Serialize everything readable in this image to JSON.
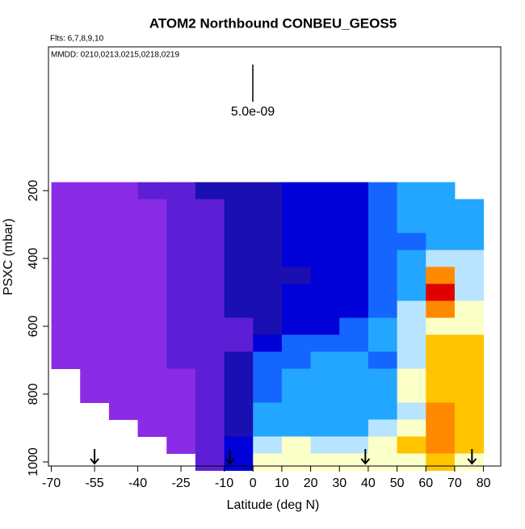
{
  "chart_data": {
    "type": "heatmap",
    "title": "ATOM2 Northbound CONBEU_GEOS5",
    "subtitle": "Flts: 6,7,8,9,10",
    "annotation": "MMDD: 0210,0213,0215,0218,0219",
    "scale_label": "5.0e-09",
    "xlabel": "Latitude (deg N)",
    "ylabel": "PSXC (mbar)",
    "xlim": [
      -71,
      86
    ],
    "ylim": [
      1012,
      -224
    ],
    "xticks": [
      -70,
      -55,
      -40,
      -25,
      -10,
      0,
      10,
      20,
      30,
      40,
      50,
      60,
      70,
      80
    ],
    "yticks": [
      200,
      400,
      600,
      800,
      1000
    ],
    "arrows_x": [
      -55,
      -8,
      39,
      76
    ],
    "colorscale": [
      "#8a2be6",
      "#5c1fd6",
      "#1a0fb0",
      "#0000d8",
      "#1466ff",
      "#22a6ff",
      "#b8e4ff",
      "#fbffc8",
      "#ffc400",
      "#ff8a00",
      "#e00000"
    ],
    "x": [
      -65,
      -55,
      -45,
      -35,
      -25,
      -15,
      -5,
      5,
      15,
      25,
      35,
      45,
      55,
      65,
      75
    ],
    "y": [
      200,
      250,
      300,
      350,
      400,
      450,
      500,
      550,
      600,
      650,
      700,
      750,
      800,
      850,
      900,
      950,
      1000
    ],
    "z": [
      [
        0,
        0,
        0,
        1,
        1,
        2,
        2,
        2,
        3,
        3,
        3,
        4,
        5,
        5,
        null
      ],
      [
        0,
        0,
        0,
        0,
        1,
        1,
        2,
        2,
        3,
        3,
        3,
        4,
        5,
        5,
        5
      ],
      [
        0,
        0,
        0,
        0,
        1,
        1,
        2,
        2,
        3,
        3,
        3,
        4,
        5,
        5,
        5
      ],
      [
        0,
        0,
        0,
        0,
        1,
        1,
        2,
        2,
        3,
        3,
        3,
        4,
        4,
        5,
        5
      ],
      [
        0,
        0,
        0,
        0,
        1,
        1,
        2,
        2,
        3,
        3,
        3,
        4,
        5,
        6,
        6
      ],
      [
        0,
        0,
        0,
        0,
        1,
        1,
        2,
        2,
        2,
        3,
        3,
        4,
        5,
        9,
        6
      ],
      [
        0,
        0,
        0,
        0,
        1,
        1,
        2,
        2,
        3,
        3,
        3,
        4,
        5,
        10,
        6
      ],
      [
        0,
        0,
        0,
        0,
        1,
        1,
        2,
        2,
        3,
        3,
        3,
        4,
        6,
        9,
        7
      ],
      [
        0,
        0,
        0,
        0,
        1,
        1,
        1,
        2,
        3,
        3,
        4,
        5,
        6,
        7,
        7
      ],
      [
        0,
        0,
        0,
        0,
        1,
        1,
        1,
        3,
        4,
        4,
        4,
        5,
        6,
        8,
        8
      ],
      [
        0,
        0,
        0,
        0,
        1,
        1,
        2,
        4,
        4,
        5,
        5,
        4,
        6,
        8,
        8
      ],
      [
        null,
        0,
        0,
        0,
        0,
        1,
        2,
        4,
        5,
        5,
        5,
        5,
        7,
        8,
        8
      ],
      [
        null,
        0,
        0,
        0,
        0,
        1,
        2,
        4,
        5,
        5,
        5,
        5,
        7,
        8,
        8
      ],
      [
        null,
        null,
        0,
        0,
        0,
        1,
        2,
        5,
        5,
        5,
        5,
        5,
        6,
        9,
        8
      ],
      [
        null,
        null,
        null,
        0,
        0,
        1,
        2,
        5,
        5,
        5,
        5,
        6,
        7,
        9,
        8
      ],
      [
        null,
        null,
        null,
        null,
        0,
        1,
        3,
        6,
        7,
        6,
        6,
        7,
        8,
        9,
        8
      ],
      [
        null,
        null,
        null,
        null,
        null,
        1,
        3,
        7,
        7,
        7,
        7,
        7,
        7,
        8,
        7
      ]
    ]
  }
}
